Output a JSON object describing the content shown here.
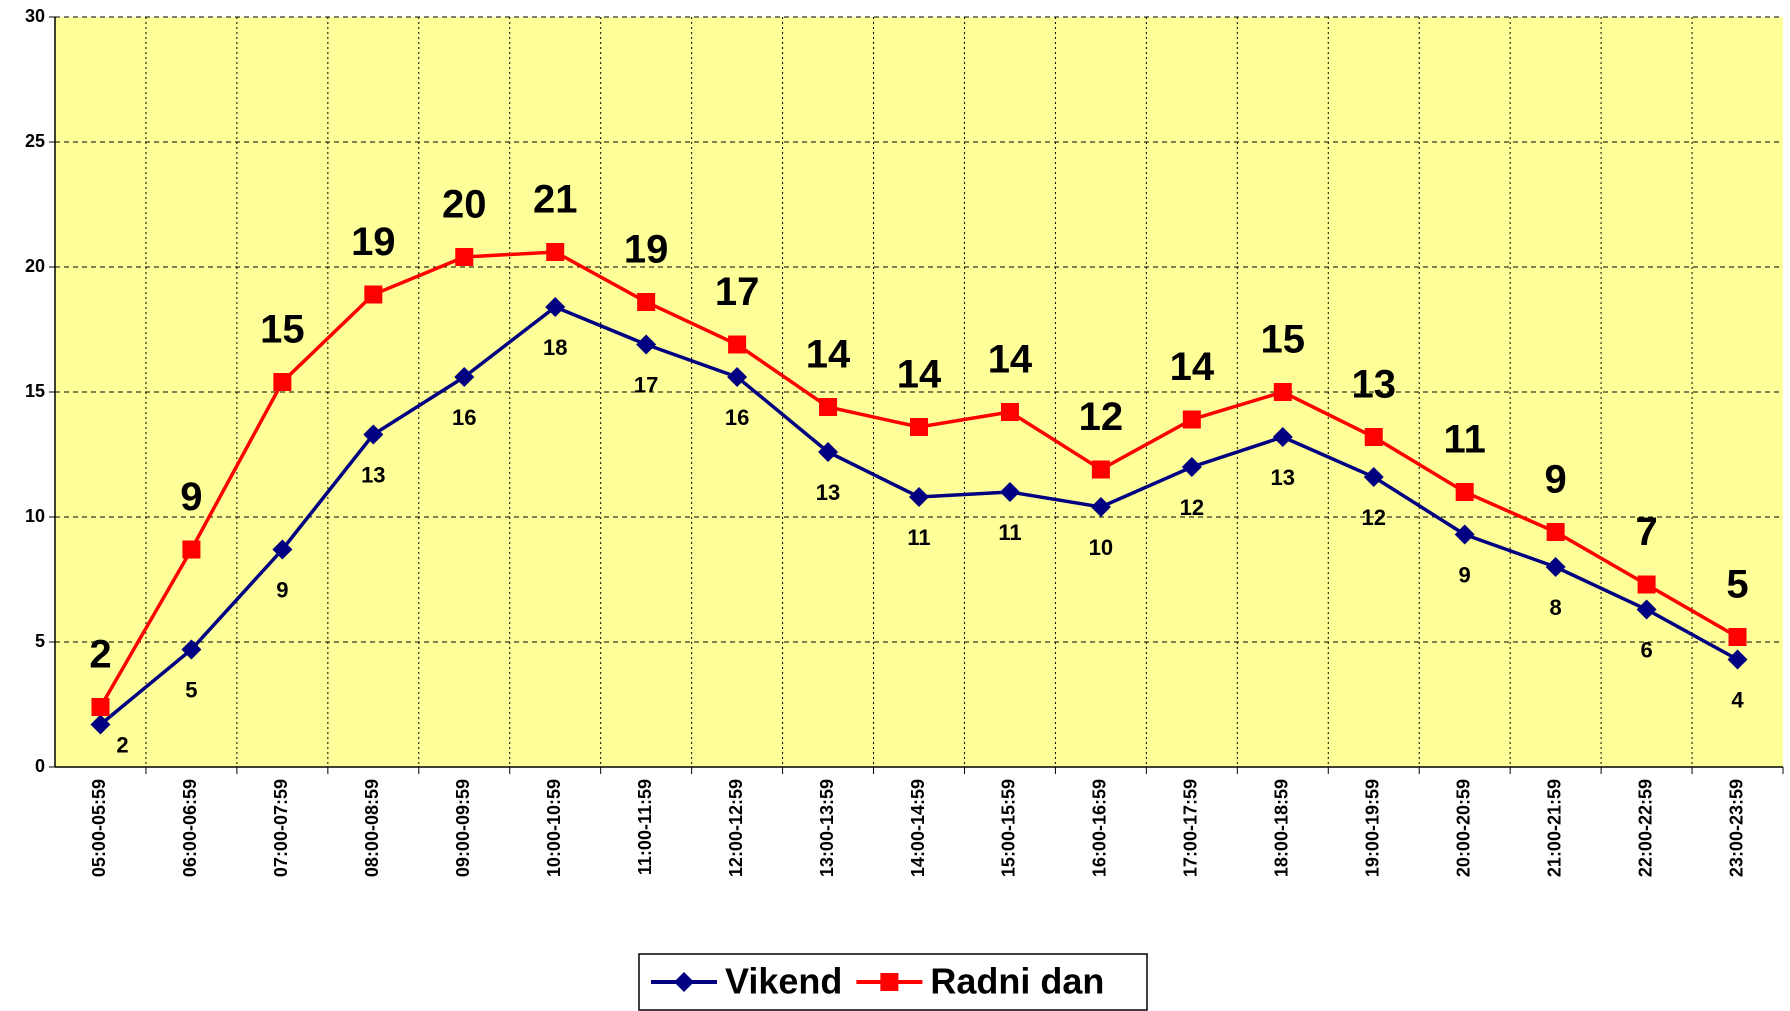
{
  "chart_data": {
    "type": "line",
    "categories": [
      "05:00-05:59",
      "06:00-06:59",
      "07:00-07:59",
      "08:00-08:59",
      "09:00-09:59",
      "10:00-10:59",
      "11:00-11:59",
      "12:00-12:59",
      "13:00-13:59",
      "14:00-14:59",
      "15:00-15:59",
      "16:00-16:59",
      "17:00-17:59",
      "18:00-18:59",
      "19:00-19:59",
      "20:00-20:59",
      "21:00-21:59",
      "22:00-22:59",
      "23:00-23:59"
    ],
    "series": [
      {
        "name": "Vikend",
        "color": "#000080",
        "marker": "diamond",
        "values": [
          1.7,
          4.7,
          8.7,
          13.3,
          15.6,
          18.4,
          16.9,
          15.6,
          12.6,
          10.8,
          11.0,
          10.4,
          12.0,
          13.2,
          11.6,
          9.3,
          8.0,
          6.3,
          4.3
        ],
        "value_labels": [
          "2",
          "5",
          "9",
          "13",
          "16",
          "18",
          "17",
          "16",
          "13",
          "11",
          "11",
          "10",
          "12",
          "13",
          "12",
          "9",
          "8",
          "6",
          "4"
        ]
      },
      {
        "name": "Radni dan",
        "color": "#ff0000",
        "marker": "square",
        "values": [
          2.4,
          8.7,
          15.4,
          18.9,
          20.4,
          20.6,
          18.6,
          16.9,
          14.4,
          13.6,
          14.2,
          11.9,
          13.9,
          15.0,
          13.2,
          11.0,
          9.4,
          7.3,
          5.2
        ],
        "value_labels": [
          "2",
          "9",
          "15",
          "19",
          "20",
          "21",
          "19",
          "17",
          "14",
          "14",
          "14",
          "12",
          "14",
          "15",
          "13",
          "11",
          "9",
          "7",
          "5"
        ]
      }
    ],
    "ylim": [
      0,
      30
    ],
    "yticks": [
      0,
      5,
      10,
      15,
      20,
      25,
      30
    ],
    "grid": true,
    "background": "#ffff99",
    "legend": "bottom"
  }
}
